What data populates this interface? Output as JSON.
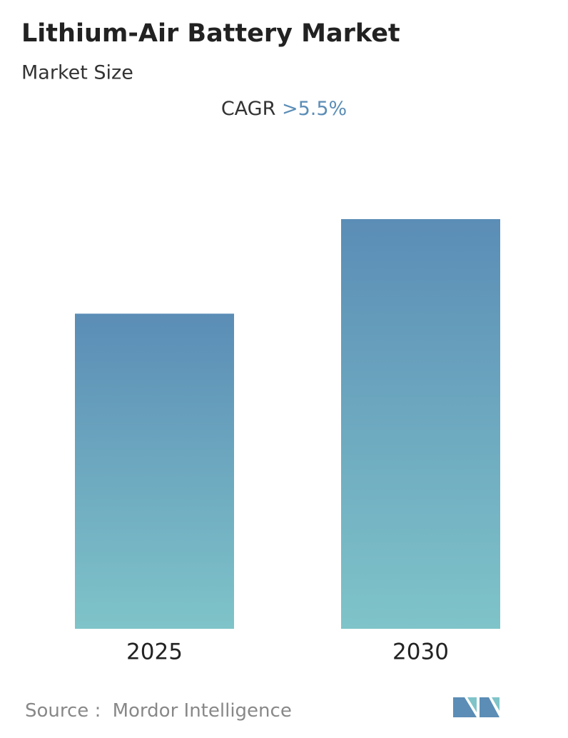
{
  "chart_data": {
    "type": "bar",
    "title": "Lithium-Air Battery Market",
    "subtitle": "Market Size",
    "cagr": {
      "label": "CAGR",
      "value": ">5.5%"
    },
    "categories": [
      "2025",
      "2030"
    ],
    "values": [
      100,
      130
    ],
    "colors": {
      "top": "#5b8db6",
      "bottom": "#7fc4c9"
    },
    "source": {
      "label": "Source :",
      "name": "Mordor Intelligence"
    }
  }
}
